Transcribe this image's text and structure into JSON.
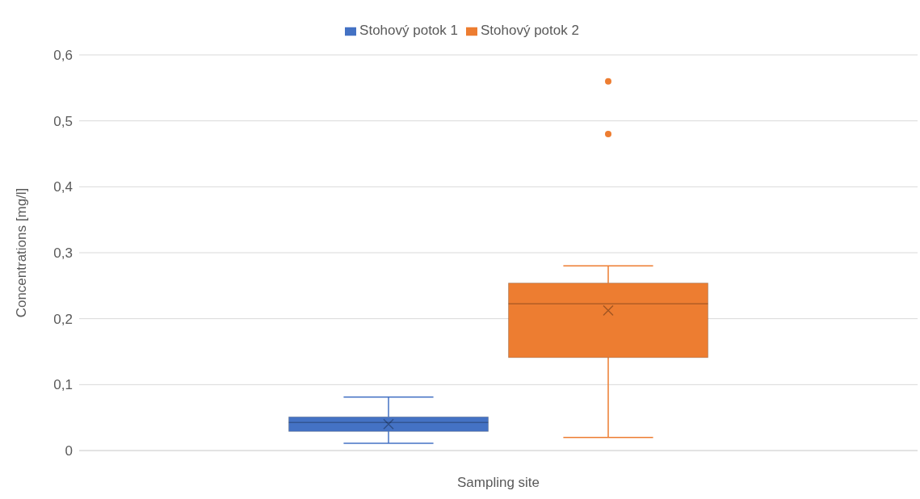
{
  "chart_data": {
    "type": "box",
    "xlabel": "Sampling site",
    "ylabel": "Concentrations  [mg/l]",
    "categories": [
      null
    ],
    "series": [
      {
        "name": "Stohový potok 1",
        "color": "#4472c4",
        "boxes": [
          {
            "low": 0.011,
            "q1": 0.029,
            "median": 0.0425,
            "q3": 0.051,
            "high": 0.081,
            "mean": 0.04
          }
        ]
      },
      {
        "name": "Stohový potok 2",
        "color": "#ed7d31",
        "boxes": [
          {
            "low": 0.02,
            "q1": 0.141,
            "median": 0.2225,
            "q3": 0.254,
            "high": 0.28,
            "mean": 0.2125,
            "outliers": [
              0.56,
              0.48
            ]
          }
        ]
      }
    ],
    "ylim": [
      0,
      0.6
    ],
    "yticks": [
      0,
      {
        "value": 0.1,
        "label": "0,1"
      },
      {
        "value": 0.2,
        "label": "0,2"
      },
      {
        "value": 0.3,
        "label": "0,3"
      },
      {
        "value": 0.4,
        "label": "0,4"
      },
      {
        "value": 0.5,
        "label": "0,5"
      },
      {
        "value": 0.6,
        "label": "0,6"
      }
    ],
    "grid": "y",
    "legend": "top",
    "marker": "circle"
  }
}
